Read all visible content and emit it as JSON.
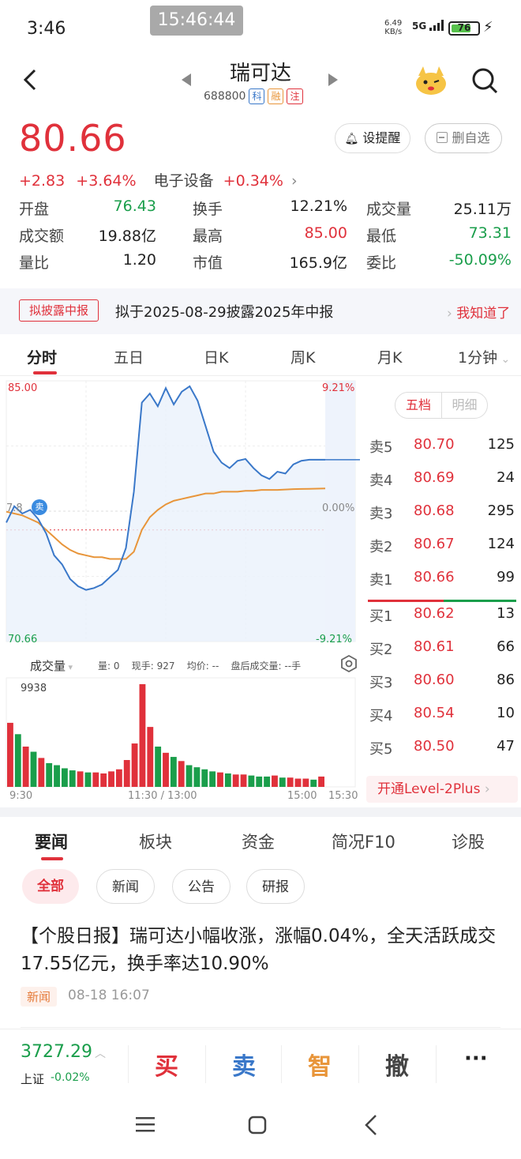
{
  "status": {
    "time": "3:46",
    "clock_overlay": "15:46:44",
    "net_speed": "6.49",
    "net_unit": "KB/s",
    "signal": "5G",
    "battery": "76"
  },
  "header": {
    "title": "瑞可达",
    "code": "688800",
    "tags": [
      "科",
      "融",
      "注"
    ]
  },
  "quote": {
    "price": "80.66",
    "change": "+2.83",
    "change_pct": "+3.64%",
    "sector": "电子设备",
    "sector_pct": "+0.34%",
    "remind_label": "设提醒",
    "delete_label": "删自选",
    "stats": [
      {
        "label": "开盘",
        "value": "76.43",
        "color": "#1a9e4b"
      },
      {
        "label": "换手",
        "value": "12.21%",
        "color": "#222222"
      },
      {
        "label": "成交量",
        "value": "25.11万",
        "color": "#222222"
      },
      {
        "label": "成交额",
        "value": "19.88亿",
        "color": "#222222"
      },
      {
        "label": "最高",
        "value": "85.00",
        "color": "#e0313b"
      },
      {
        "label": "最低",
        "value": "73.31",
        "color": "#1a9e4b"
      },
      {
        "label": "量比",
        "value": "1.20",
        "color": "#222222"
      },
      {
        "label": "市值",
        "value": "165.9亿",
        "color": "#222222"
      },
      {
        "label": "委比",
        "value": "-50.09%",
        "color": "#1a9e4b"
      }
    ]
  },
  "notice": {
    "tag": "拟披露中报",
    "text": "拟于2025-08-29披露2025年中报",
    "link": "我知道了"
  },
  "chart_tabs": [
    "分时",
    "五日",
    "日K",
    "周K",
    "月K",
    "1分钟"
  ],
  "chart_info": {
    "high": "85.00",
    "low": "70.66",
    "high_pct": "9.21%",
    "low_pct": "-9.21%",
    "mid_pct": "0.00%",
    "prev_close_fragment": "7.8",
    "sell_marker": "卖",
    "vol_label": "成交量",
    "vol_stats": "量: 0    现手: 927    均价: --    盘后成交量: --手",
    "vol_max": "9938",
    "x_ticks": [
      "9:30",
      "11:30 / 13:00",
      "15:00",
      "15:30"
    ]
  },
  "chart_data": {
    "type": "line",
    "title": "",
    "ylim": [
      70.66,
      85.0
    ],
    "prev_close": 77.83,
    "x": [
      0,
      6,
      12,
      18,
      24,
      30,
      36,
      42,
      48,
      54,
      60,
      66,
      72,
      78,
      84,
      90,
      96,
      102,
      108,
      114,
      120,
      126,
      132,
      138,
      144,
      150,
      156,
      162,
      168,
      174,
      180,
      186,
      192,
      198,
      204,
      210,
      216,
      222,
      228,
      234,
      240
    ],
    "series": [
      {
        "values": [
          77.2,
          78.1,
          77.7,
          77.9,
          77.4,
          76.6,
          75.4,
          74.9,
          74.1,
          73.7,
          73.5,
          73.6,
          73.8,
          74.2,
          74.6,
          75.8,
          78.9,
          83.8,
          84.3,
          83.6,
          84.6,
          83.7,
          84.4,
          84.7,
          83.9,
          82.5,
          81.1,
          80.5,
          80.2,
          80.6,
          80.7,
          80.2,
          79.8,
          79.6,
          80.0,
          79.9,
          80.4,
          80.6,
          80.66,
          80.66,
          80.66
        ]
      },
      {
        "values": [
          77.8,
          77.7,
          77.6,
          77.4,
          77.2,
          76.8,
          76.4,
          76.0,
          75.7,
          75.5,
          75.4,
          75.3,
          75.3,
          75.2,
          75.2,
          75.2,
          75.6,
          76.8,
          77.5,
          77.9,
          78.2,
          78.4,
          78.5,
          78.6,
          78.7,
          78.8,
          78.8,
          78.9,
          78.9,
          78.9,
          78.95,
          78.95,
          79.0,
          79.0,
          79.0,
          79.02,
          79.04,
          79.05,
          79.06,
          79.07,
          79.08
        ]
      }
    ],
    "volume": [
      6200,
      5100,
      3900,
      3400,
      2800,
      2300,
      2100,
      1800,
      1600,
      1500,
      1400,
      1400,
      1300,
      1500,
      1700,
      2600,
      4200,
      9938,
      5800,
      3900,
      3300,
      2900,
      2500,
      2100,
      1900,
      1700,
      1500,
      1400,
      1300,
      1200,
      1200,
      1100,
      1000,
      1000,
      1100,
      900,
      900,
      800,
      800,
      700,
      1000
    ],
    "volume_color": [
      "r",
      "g",
      "r",
      "g",
      "r",
      "g",
      "g",
      "g",
      "g",
      "r",
      "g",
      "r",
      "r",
      "r",
      "r",
      "r",
      "r",
      "r",
      "r",
      "g",
      "r",
      "g",
      "r",
      "g",
      "g",
      "g",
      "g",
      "r",
      "g",
      "r",
      "r",
      "g",
      "g",
      "g",
      "r",
      "g",
      "r",
      "r",
      "r",
      "g",
      "r"
    ]
  },
  "orderbook": {
    "toggle": [
      "五档",
      "明细"
    ],
    "asks": [
      {
        "label": "卖5",
        "price": "80.70",
        "qty": "125"
      },
      {
        "label": "卖4",
        "price": "80.69",
        "qty": "24"
      },
      {
        "label": "卖3",
        "price": "80.68",
        "qty": "295"
      },
      {
        "label": "卖2",
        "price": "80.67",
        "qty": "124"
      },
      {
        "label": "卖1",
        "price": "80.66",
        "qty": "99"
      }
    ],
    "bids": [
      {
        "label": "买1",
        "price": "80.62",
        "qty": "13"
      },
      {
        "label": "买2",
        "price": "80.61",
        "qty": "66"
      },
      {
        "label": "买3",
        "price": "80.60",
        "qty": "86"
      },
      {
        "label": "买4",
        "price": "80.54",
        "qty": "10"
      },
      {
        "label": "买5",
        "price": "80.50",
        "qty": "47"
      }
    ],
    "level2": "开通Level-2Plus"
  },
  "news_tabs": [
    "要闻",
    "板块",
    "资金",
    "简况F10",
    "诊股"
  ],
  "chips": [
    "全部",
    "新闻",
    "公告",
    "研报"
  ],
  "article": {
    "title": "【个股日报】瑞可达小幅收涨，涨幅0.04%，全天活跃成交17.55亿元，换手率达10.90%",
    "tag": "新闻",
    "time": "08-18 16:07"
  },
  "bottom": {
    "index_value": "3727.29",
    "index_name": "上证",
    "index_change": "-0.02%",
    "buy": "买",
    "sell": "卖",
    "smart": "智",
    "cancel": "撤",
    "more": "···"
  },
  "colors": {
    "up": "#e0313b",
    "down": "#1a9e4b",
    "price_line": "#3a78c9",
    "avg_line": "#e8953a"
  }
}
